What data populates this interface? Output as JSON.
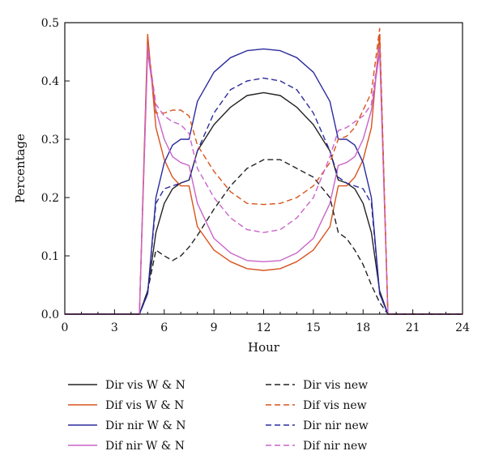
{
  "chart_data": {
    "type": "line",
    "xlabel": "Hour",
    "ylabel": "Percentage",
    "xlim": [
      0,
      24
    ],
    "ylim": [
      0,
      0.5
    ],
    "xticks": [
      "0",
      "3",
      "6",
      "9",
      "12",
      "15",
      "18",
      "21",
      "24"
    ],
    "yticks": [
      "0.0",
      "0.1",
      "0.2",
      "0.3",
      "0.4",
      "0.5"
    ],
    "grid": false,
    "legend_position": "below",
    "series": [
      {
        "name": "Dir vis W & N",
        "color": "#222222",
        "dash": "solid",
        "x": [
          0,
          4.5,
          5,
          5.5,
          6,
          6.5,
          7,
          7.5,
          8,
          9,
          10,
          11,
          12,
          13,
          14,
          15,
          16,
          16.5,
          17,
          17.5,
          18,
          18.5,
          19,
          19.5,
          20,
          24
        ],
        "y": [
          0,
          0,
          0.04,
          0.14,
          0.19,
          0.215,
          0.225,
          0.23,
          0.28,
          0.325,
          0.355,
          0.375,
          0.38,
          0.375,
          0.355,
          0.325,
          0.28,
          0.23,
          0.225,
          0.215,
          0.19,
          0.14,
          0.04,
          0,
          0,
          0
        ]
      },
      {
        "name": "Dif vis W & N",
        "color": "#d9531e",
        "dash": "solid",
        "x": [
          0,
          4.5,
          5,
          5.5,
          6,
          6.5,
          7,
          7.5,
          8,
          9,
          10,
          11,
          12,
          13,
          14,
          15,
          16,
          16.5,
          17,
          17.5,
          18,
          18.5,
          19,
          19.5,
          20,
          24
        ],
        "y": [
          0,
          0,
          0.48,
          0.32,
          0.265,
          0.235,
          0.22,
          0.22,
          0.15,
          0.11,
          0.09,
          0.078,
          0.075,
          0.078,
          0.09,
          0.11,
          0.15,
          0.22,
          0.22,
          0.235,
          0.265,
          0.32,
          0.48,
          0,
          0,
          0
        ]
      },
      {
        "name": "Dir nir W & N",
        "color": "#2b2b9e",
        "dash": "solid",
        "x": [
          0,
          4.5,
          5,
          5.5,
          6,
          6.5,
          7,
          7.5,
          8,
          9,
          10,
          11,
          12,
          13,
          14,
          15,
          16,
          16.5,
          17,
          17.5,
          18,
          18.5,
          19,
          19.5,
          20,
          24
        ],
        "y": [
          0,
          0,
          0.035,
          0.2,
          0.26,
          0.29,
          0.3,
          0.3,
          0.365,
          0.415,
          0.44,
          0.452,
          0.455,
          0.452,
          0.44,
          0.415,
          0.365,
          0.3,
          0.3,
          0.29,
          0.26,
          0.2,
          0.035,
          0,
          0,
          0
        ]
      },
      {
        "name": "Dif nir W & N",
        "color": "#c964c9",
        "dash": "solid",
        "x": [
          0,
          4.5,
          5,
          5.5,
          6,
          6.5,
          7,
          7.5,
          8,
          9,
          10,
          11,
          12,
          13,
          14,
          15,
          16,
          16.5,
          17,
          17.5,
          18,
          18.5,
          19,
          19.5,
          20,
          24
        ],
        "y": [
          0,
          0,
          0.45,
          0.35,
          0.3,
          0.27,
          0.26,
          0.255,
          0.19,
          0.13,
          0.105,
          0.092,
          0.09,
          0.092,
          0.105,
          0.13,
          0.19,
          0.255,
          0.26,
          0.27,
          0.3,
          0.35,
          0.45,
          0,
          0,
          0
        ]
      },
      {
        "name": "Dir vis new",
        "color": "#222222",
        "dash": "dashed",
        "x": [
          0,
          4.5,
          5,
          5.5,
          6,
          6.5,
          7,
          7.5,
          8,
          9,
          10,
          11,
          12,
          13,
          14,
          15,
          16,
          16.5,
          17,
          17.5,
          18,
          18.5,
          19,
          19.5,
          20,
          24
        ],
        "y": [
          0,
          0,
          0.04,
          0.11,
          0.1,
          0.092,
          0.1,
          0.115,
          0.135,
          0.18,
          0.22,
          0.25,
          0.265,
          0.265,
          0.25,
          0.235,
          0.2,
          0.14,
          0.13,
          0.11,
          0.085,
          0.05,
          0.02,
          0,
          0,
          0
        ]
      },
      {
        "name": "Dif vis new",
        "color": "#d9531e",
        "dash": "dashed",
        "x": [
          0,
          4.5,
          5,
          5.5,
          6,
          6.5,
          7,
          7.5,
          8,
          9,
          10,
          11,
          12,
          13,
          14,
          15,
          16,
          16.5,
          17,
          17.5,
          18,
          18.5,
          19,
          19.5,
          20,
          24
        ],
        "y": [
          0,
          0,
          0.47,
          0.345,
          0.345,
          0.35,
          0.35,
          0.34,
          0.29,
          0.245,
          0.21,
          0.19,
          0.188,
          0.19,
          0.2,
          0.22,
          0.26,
          0.3,
          0.305,
          0.32,
          0.35,
          0.38,
          0.49,
          0,
          0,
          0
        ]
      },
      {
        "name": "Dir nir new",
        "color": "#2b2b9e",
        "dash": "dashed",
        "x": [
          0,
          4.5,
          5,
          5.5,
          6,
          6.5,
          7,
          7.5,
          8,
          9,
          10,
          11,
          12,
          13,
          14,
          15,
          16,
          16.5,
          17,
          17.5,
          18,
          18.5,
          19,
          19.5,
          20,
          24
        ],
        "y": [
          0,
          0,
          0.035,
          0.19,
          0.215,
          0.22,
          0.225,
          0.23,
          0.28,
          0.345,
          0.385,
          0.4,
          0.405,
          0.4,
          0.385,
          0.345,
          0.28,
          0.235,
          0.225,
          0.22,
          0.215,
          0.19,
          0.035,
          0,
          0,
          0
        ]
      },
      {
        "name": "Dif nir new",
        "color": "#c964c9",
        "dash": "dashed",
        "x": [
          0,
          4.5,
          5,
          5.5,
          6,
          6.5,
          7,
          7.5,
          8,
          9,
          10,
          11,
          12,
          13,
          14,
          15,
          16,
          16.5,
          17,
          17.5,
          18,
          18.5,
          19,
          19.5,
          20,
          24
        ],
        "y": [
          0,
          0,
          0.46,
          0.36,
          0.34,
          0.33,
          0.325,
          0.31,
          0.25,
          0.2,
          0.165,
          0.145,
          0.14,
          0.145,
          0.165,
          0.2,
          0.27,
          0.315,
          0.32,
          0.33,
          0.34,
          0.36,
          0.46,
          0,
          0,
          0
        ]
      }
    ]
  }
}
